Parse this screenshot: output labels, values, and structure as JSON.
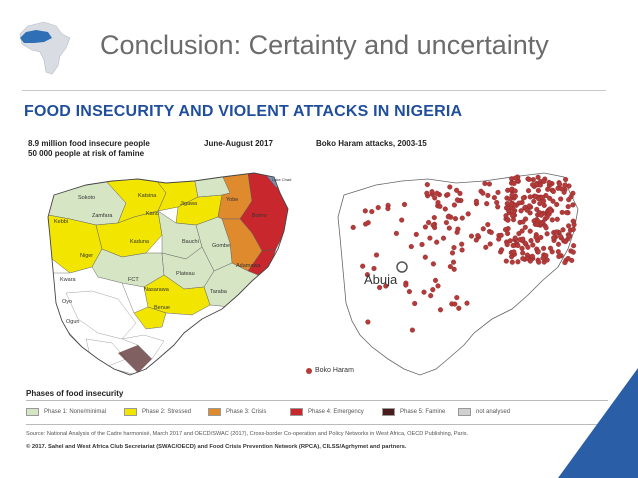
{
  "slide": {
    "title": "Conclusion: Certainty and uncertainty",
    "subtitle": "FOOD INSECURITY AND VIOLENT ATTACKS IN NIGERIA"
  },
  "figure": {
    "stat_line_1": "8.9 million food insecure people",
    "stat_line_2": "50 000 people at risk of famine",
    "period": "June-August 2017",
    "attacks_title": "Boko Haram attacks, 2003-15",
    "abuja_label": "Abuja",
    "boko_legend": "Boko Haram",
    "phases_title": "Phases of food insecurity",
    "legend": [
      {
        "label": "Phase 1: None/minimal",
        "color": "#d6e6c4"
      },
      {
        "label": "Phase 2: Stressed",
        "color": "#f2e600"
      },
      {
        "label": "Phase 3: Crisis",
        "color": "#e08a2e"
      },
      {
        "label": "Phase 4: Emergency",
        "color": "#c8272d"
      },
      {
        "label": "Phase 5: Famine",
        "color": "#4a1c1c"
      },
      {
        "label": "not analysed",
        "color": "#d0d0d0"
      }
    ],
    "source": "Source: National Analysis of the Cadre harmonisé, March 2017 and OECD/SWAC (2017), Cross-border Co-operation and Policy Networks in West Africa, OECD Publishing, Paris.",
    "copyright": "© 2017. Sahel and West Africa Club Secretariat (SWAC/OECD) and Food Crisis Prevention Network (RPCA), CILSS/Agrhymet and partners.",
    "state_labels": [
      "Sokoto",
      "Zamfara",
      "Katsina",
      "Kano",
      "Jigawa",
      "Yobe",
      "Borno",
      "Kebbi",
      "Kaduna",
      "Bauchi",
      "Gombe",
      "Adamawa",
      "Niger",
      "Plateau",
      "Taraba",
      "Benue",
      "Kwara",
      "FCT",
      "Nasarawa",
      "Oyo",
      "Ogun",
      "Lake Chad"
    ]
  },
  "colors": {
    "title_text": "#6b6b6b",
    "subtitle_text": "#1f4e9c",
    "logo_blue": "#2f6fb6",
    "attack_dot": "#b53a3a",
    "corner_blue": "#2a5fa8"
  }
}
